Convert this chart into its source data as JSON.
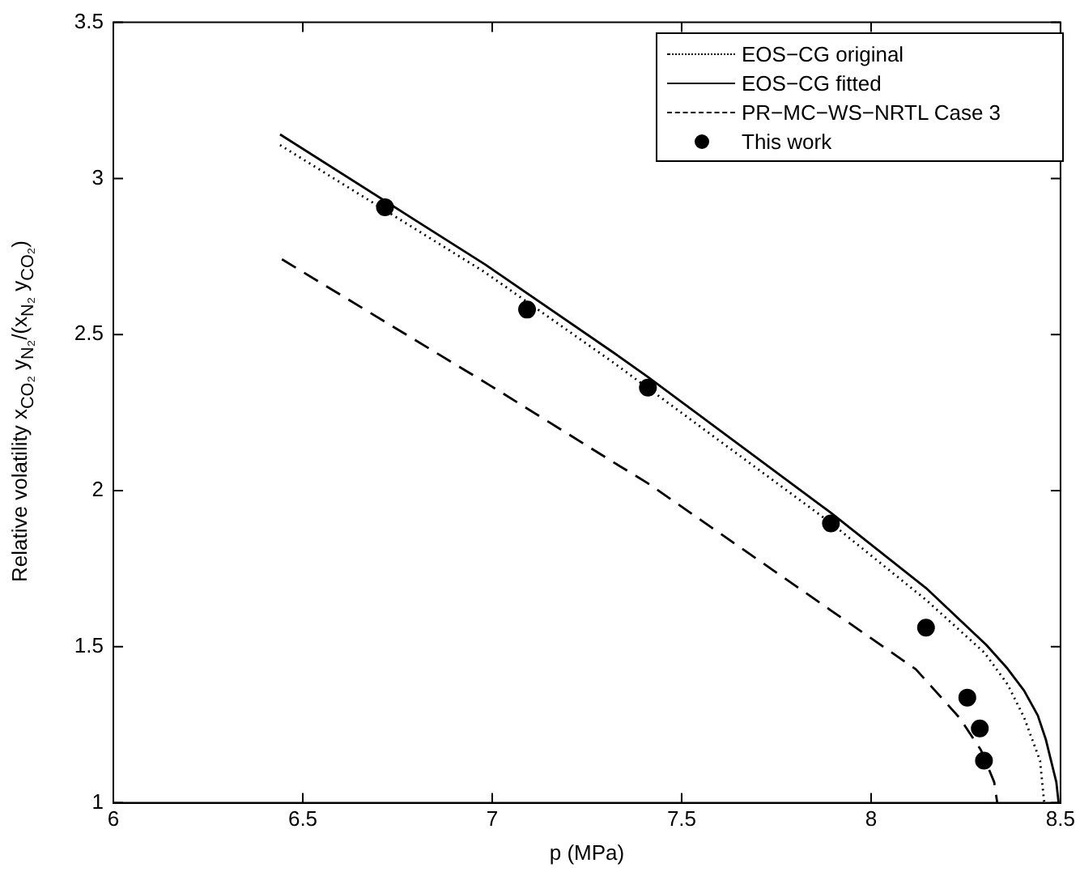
{
  "chart_data": {
    "type": "line",
    "xlabel": "p (MPa)",
    "ylabel": "Relative volatility x$_{CO₂}$ y$_{N₂}$/(x$_{N₂}$ y$_{CO₂}$)",
    "xlim": [
      6,
      8.5
    ],
    "xticks": [
      6,
      6.5,
      7,
      7.5,
      8,
      8.5
    ],
    "ylim": [
      1,
      3.5
    ],
    "yticks": [
      1,
      1.5,
      2,
      2.5,
      3,
      3.5
    ],
    "grid": false,
    "legend": "top right",
    "series": [
      {
        "name": "EOS−CG original",
        "line_style": "dotted",
        "color": "#000000",
        "x": [
          6.44,
          6.98,
          7.32,
          7.89,
          8.145,
          8.3,
          8.36,
          8.404,
          8.446,
          8.457
        ],
        "values": [
          3.107,
          2.7,
          2.41,
          1.9,
          1.65,
          1.48,
          1.38,
          1.273,
          1.135,
          1.0
        ]
      },
      {
        "name": "EOS−CG fitted",
        "line_style": "solid",
        "color": "#000000",
        "x": [
          6.44,
          6.982,
          7.324,
          7.411,
          7.894,
          8.145,
          8.304,
          8.36,
          8.404,
          8.44,
          8.461,
          8.489,
          8.495
        ],
        "values": [
          3.141,
          2.724,
          2.439,
          2.364,
          1.929,
          1.688,
          1.506,
          1.43,
          1.359,
          1.28,
          1.204,
          1.066,
          1.0
        ]
      },
      {
        "name": "PR−MC−WS−NRTL Case 3",
        "line_style": "dashed",
        "color": "#000000",
        "x": [
          6.445,
          6.997,
          7.324,
          7.409,
          7.892,
          8.118,
          8.233,
          8.29,
          8.325,
          8.333
        ],
        "values": [
          2.741,
          2.335,
          2.088,
          2.025,
          1.618,
          1.428,
          1.273,
          1.169,
          1.066,
          1.0
        ]
      },
      {
        "name": "This work",
        "type": "scatter",
        "marker": "circle",
        "color": "#000000",
        "x": [
          6.717,
          7.092,
          7.411,
          7.894,
          8.145,
          8.254,
          8.287,
          8.298
        ],
        "values": [
          2.908,
          2.58,
          2.33,
          1.895,
          1.561,
          1.337,
          1.238,
          1.135
        ]
      }
    ]
  }
}
